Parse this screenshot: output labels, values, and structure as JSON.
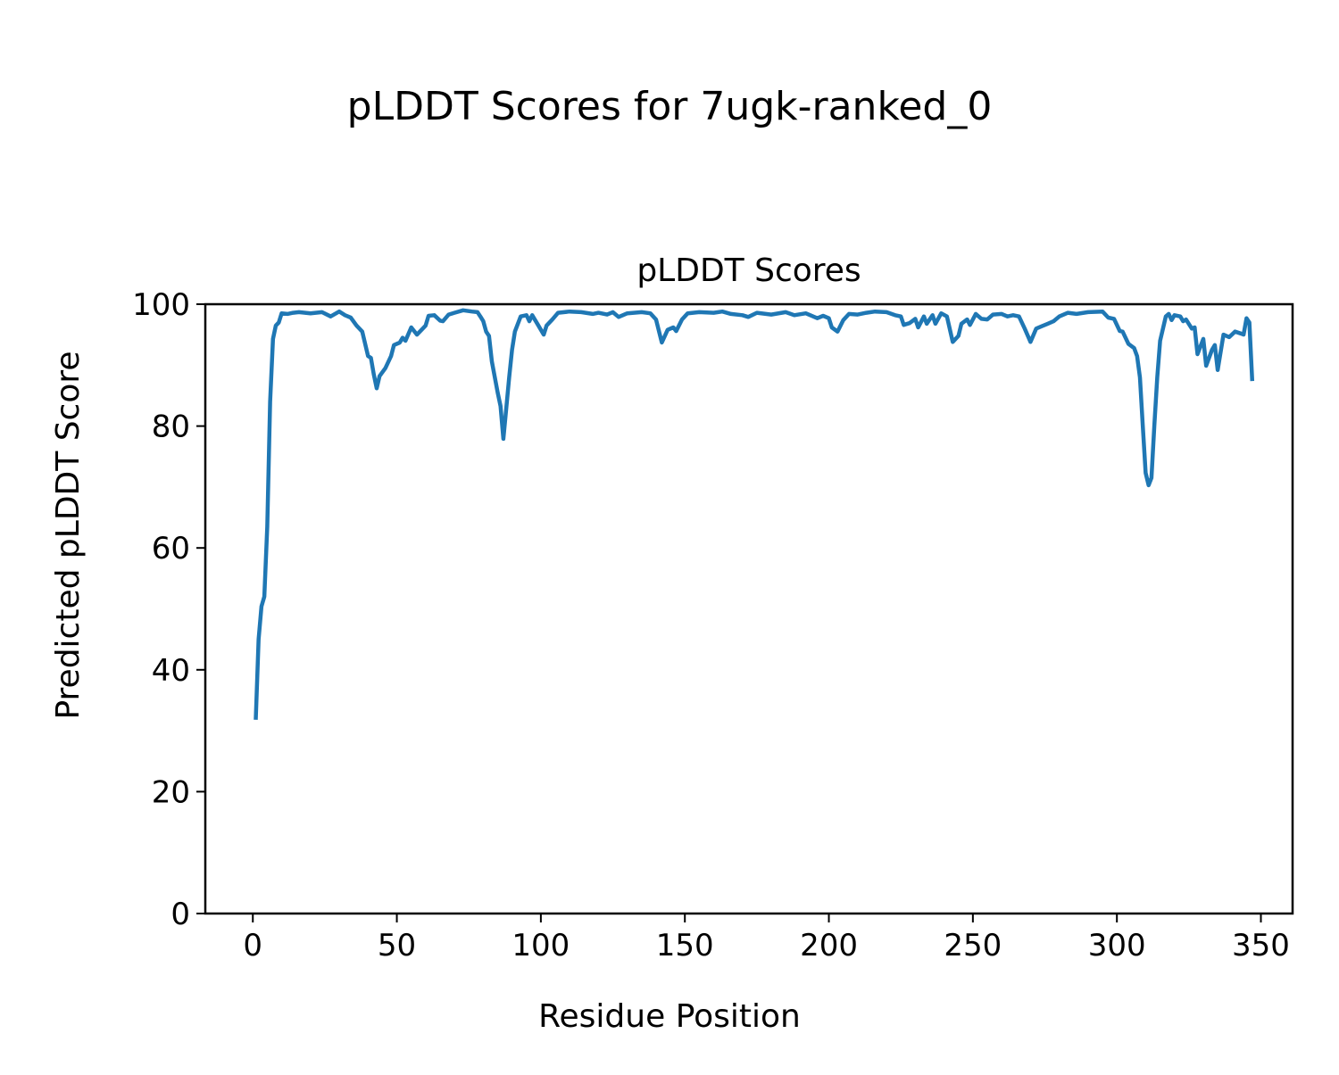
{
  "chart_data": {
    "type": "line",
    "suptitle": "pLDDT Scores for 7ugk-ranked_0",
    "title": "pLDDT Scores",
    "xlabel": "Residue Position",
    "ylabel": "Predicted pLDDT Score",
    "xlim": [
      -16.5,
      361
    ],
    "ylim": [
      0,
      100
    ],
    "xticks": [
      0,
      50,
      100,
      150,
      200,
      250,
      300,
      350
    ],
    "yticks": [
      0,
      20,
      40,
      60,
      80,
      100
    ],
    "grid": false,
    "line_color": "#1f77b4",
    "series": [
      {
        "name": "pLDDT",
        "points": [
          [
            1,
            31.8
          ],
          [
            2,
            45
          ],
          [
            3,
            50.4
          ],
          [
            4,
            52
          ],
          [
            5,
            63.5
          ],
          [
            6,
            84
          ],
          [
            7,
            94.3
          ],
          [
            8,
            96.5
          ],
          [
            9,
            97
          ],
          [
            10,
            98.5
          ],
          [
            12,
            98.4
          ],
          [
            14,
            98.6
          ],
          [
            16,
            98.7
          ],
          [
            20,
            98.5
          ],
          [
            24,
            98.7
          ],
          [
            27,
            98
          ],
          [
            30,
            98.8
          ],
          [
            32,
            98.2
          ],
          [
            34,
            97.8
          ],
          [
            36,
            96.5
          ],
          [
            38,
            95.5
          ],
          [
            40,
            91.5
          ],
          [
            41,
            91.2
          ],
          [
            42,
            88.5
          ],
          [
            43,
            86.2
          ],
          [
            44,
            88.2
          ],
          [
            46,
            89.5
          ],
          [
            48,
            91.5
          ],
          [
            49,
            93.3
          ],
          [
            51,
            93.7
          ],
          [
            52,
            94.5
          ],
          [
            53,
            94
          ],
          [
            55,
            96.2
          ],
          [
            57,
            95
          ],
          [
            59,
            96
          ],
          [
            60,
            96.5
          ],
          [
            61,
            98.1
          ],
          [
            63,
            98.2
          ],
          [
            65,
            97.3
          ],
          [
            66,
            97.2
          ],
          [
            68,
            98.3
          ],
          [
            70,
            98.6
          ],
          [
            73,
            99
          ],
          [
            76,
            98.8
          ],
          [
            78,
            98.7
          ],
          [
            79,
            98
          ],
          [
            80,
            97.2
          ],
          [
            81,
            95.5
          ],
          [
            82,
            94.8
          ],
          [
            83,
            90.6
          ],
          [
            85,
            85.5
          ],
          [
            86,
            83.3
          ],
          [
            87,
            77.9
          ],
          [
            88,
            83
          ],
          [
            89,
            88
          ],
          [
            90,
            92.5
          ],
          [
            91,
            95.5
          ],
          [
            93,
            98
          ],
          [
            95,
            98.2
          ],
          [
            96,
            97.2
          ],
          [
            97,
            98.2
          ],
          [
            99,
            96.6
          ],
          [
            101,
            95
          ],
          [
            102,
            96.5
          ],
          [
            104,
            97.5
          ],
          [
            106,
            98.6
          ],
          [
            110,
            98.8
          ],
          [
            114,
            98.7
          ],
          [
            118,
            98.4
          ],
          [
            120,
            98.6
          ],
          [
            123,
            98.3
          ],
          [
            125,
            98.7
          ],
          [
            127,
            97.9
          ],
          [
            130,
            98.5
          ],
          [
            135,
            98.7
          ],
          [
            138,
            98.5
          ],
          [
            140,
            97.5
          ],
          [
            142,
            93.7
          ],
          [
            144,
            95.8
          ],
          [
            146,
            96.2
          ],
          [
            147,
            95.6
          ],
          [
            149,
            97.5
          ],
          [
            151,
            98.5
          ],
          [
            155,
            98.7
          ],
          [
            160,
            98.6
          ],
          [
            163,
            98.8
          ],
          [
            166,
            98.4
          ],
          [
            170,
            98.2
          ],
          [
            172,
            97.9
          ],
          [
            175,
            98.6
          ],
          [
            180,
            98.3
          ],
          [
            185,
            98.7
          ],
          [
            188,
            98.2
          ],
          [
            192,
            98.5
          ],
          [
            196,
            97.7
          ],
          [
            198,
            98.1
          ],
          [
            200,
            97.7
          ],
          [
            201,
            96.2
          ],
          [
            203,
            95.5
          ],
          [
            205,
            97.4
          ],
          [
            207,
            98.4
          ],
          [
            210,
            98.3
          ],
          [
            213,
            98.6
          ],
          [
            216,
            98.8
          ],
          [
            220,
            98.7
          ],
          [
            223,
            98.2
          ],
          [
            225,
            98
          ],
          [
            226,
            96.6
          ],
          [
            228,
            96.9
          ],
          [
            230,
            97.6
          ],
          [
            231,
            96.2
          ],
          [
            233,
            98
          ],
          [
            234,
            96.8
          ],
          [
            236,
            98.2
          ],
          [
            237,
            96.8
          ],
          [
            239,
            98.5
          ],
          [
            241,
            98
          ],
          [
            243,
            93.8
          ],
          [
            245,
            94.8
          ],
          [
            246,
            96.8
          ],
          [
            248,
            97.5
          ],
          [
            249,
            96.6
          ],
          [
            251,
            98.4
          ],
          [
            253,
            97.6
          ],
          [
            255,
            97.5
          ],
          [
            257,
            98.3
          ],
          [
            260,
            98.4
          ],
          [
            262,
            98
          ],
          [
            264,
            98.2
          ],
          [
            266,
            98
          ],
          [
            268,
            96
          ],
          [
            270,
            93.8
          ],
          [
            272,
            96
          ],
          [
            274,
            96.4
          ],
          [
            276,
            96.8
          ],
          [
            278,
            97.2
          ],
          [
            280,
            98
          ],
          [
            283,
            98.6
          ],
          [
            286,
            98.4
          ],
          [
            290,
            98.7
          ],
          [
            295,
            98.8
          ],
          [
            297,
            97.8
          ],
          [
            299,
            97.6
          ],
          [
            301,
            95.6
          ],
          [
            302,
            95.5
          ],
          [
            304,
            93.5
          ],
          [
            306,
            92.8
          ],
          [
            307,
            91.5
          ],
          [
            308,
            88
          ],
          [
            309,
            80
          ],
          [
            310,
            72.3
          ],
          [
            311,
            70.3
          ],
          [
            312,
            71.5
          ],
          [
            313,
            80
          ],
          [
            314,
            88
          ],
          [
            315,
            94
          ],
          [
            317,
            98
          ],
          [
            318,
            98.4
          ],
          [
            319,
            97.4
          ],
          [
            320,
            98.2
          ],
          [
            322,
            98
          ],
          [
            323,
            97.2
          ],
          [
            324,
            97.5
          ],
          [
            326,
            96
          ],
          [
            327,
            96.2
          ],
          [
            328,
            91.8
          ],
          [
            330,
            94.3
          ],
          [
            331,
            89.9
          ],
          [
            333,
            92.5
          ],
          [
            334,
            93.3
          ],
          [
            335,
            89.2
          ],
          [
            337,
            95
          ],
          [
            339,
            94.6
          ],
          [
            341,
            95.5
          ],
          [
            343,
            95.2
          ],
          [
            344,
            95
          ],
          [
            345,
            97.7
          ],
          [
            346,
            97
          ],
          [
            347,
            87.4
          ]
        ]
      }
    ]
  }
}
